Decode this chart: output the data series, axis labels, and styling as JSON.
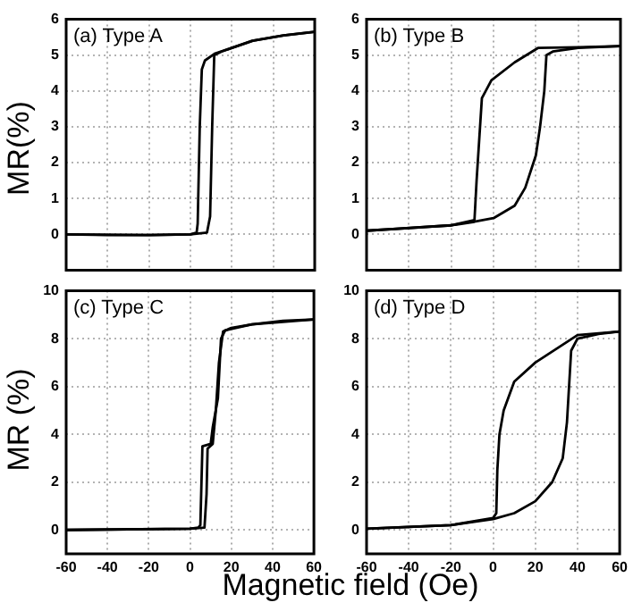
{
  "chart_data": [
    {
      "type": "line",
      "title": "(a) Type A",
      "ylabel": "MR(%)",
      "xlim": [
        -60,
        60
      ],
      "xticks": [
        -60,
        -40,
        -20,
        0,
        20,
        40,
        60
      ],
      "ylim": [
        -1,
        6
      ],
      "yticks": [
        0,
        1,
        2,
        3,
        4,
        5,
        6
      ],
      "grid": true,
      "tick_labels": "y",
      "marker": "none",
      "series": [
        {
          "color": "#000000",
          "x": [
            -60,
            -40,
            -20,
            0,
            8,
            9.5,
            10.5,
            11.5,
            15,
            20,
            30,
            45,
            60
          ],
          "values": [
            0,
            -0.02,
            -0.02,
            0,
            0.05,
            0.5,
            3,
            5,
            5.1,
            5.2,
            5.4,
            5.55,
            5.65
          ]
        },
        {
          "color": "#000000",
          "x": [
            60,
            45,
            30,
            20,
            12,
            7,
            5.5,
            4.5,
            3.5,
            3,
            0,
            -20,
            -60
          ],
          "values": [
            5.65,
            5.55,
            5.4,
            5.2,
            5.05,
            4.85,
            4.6,
            3,
            0.3,
            0.05,
            0,
            -0.02,
            0
          ]
        }
      ]
    },
    {
      "type": "line",
      "title": "(b) Type B",
      "xlim": [
        -60,
        60
      ],
      "xticks": [
        -60,
        -40,
        -20,
        0,
        20,
        40,
        60
      ],
      "ylim": [
        -1,
        6
      ],
      "yticks": [
        0,
        1,
        2,
        3,
        4,
        5,
        6
      ],
      "grid": true,
      "tick_labels": "y",
      "marker": "none",
      "series": [
        {
          "color": "#000000",
          "x": [
            -60,
            -20,
            -9,
            0,
            10,
            15,
            20,
            22,
            24,
            25,
            28,
            40,
            60
          ],
          "values": [
            0.1,
            0.25,
            0.35,
            0.45,
            0.8,
            1.3,
            2.2,
            3,
            4,
            5,
            5.1,
            5.2,
            5.25
          ]
        },
        {
          "color": "#000000",
          "x": [
            60,
            40,
            21,
            10,
            -1,
            -5.5,
            -8,
            -9,
            -20,
            -60
          ],
          "values": [
            5.25,
            5.22,
            5.2,
            4.8,
            4.3,
            3.8,
            1.5,
            0.4,
            0.25,
            0.1
          ]
        }
      ]
    },
    {
      "type": "line",
      "title": "(c) Type C",
      "ylabel": "MR (%)",
      "xlabel": "Magnetic field (Oe)",
      "xlim": [
        -60,
        60
      ],
      "xticks": [
        -60,
        -40,
        -20,
        0,
        20,
        40,
        60
      ],
      "ylim": [
        -1,
        10
      ],
      "yticks": [
        0,
        2,
        4,
        6,
        8,
        10
      ],
      "grid": true,
      "marker": "none",
      "series": [
        {
          "color": "#000000",
          "x": [
            -60,
            0,
            7,
            8,
            8.5,
            11,
            12.5,
            14,
            16,
            20,
            30,
            45,
            60
          ],
          "values": [
            0,
            0.05,
            0.1,
            1.5,
            3.4,
            3.6,
            5,
            7,
            8.3,
            8.45,
            8.6,
            8.75,
            8.8
          ]
        },
        {
          "color": "#000000",
          "x": [
            60,
            30,
            17,
            15,
            13.5,
            11,
            10,
            6,
            5,
            4,
            0,
            -60
          ],
          "values": [
            8.8,
            8.6,
            8.35,
            8,
            5.5,
            4.3,
            3.6,
            3.5,
            0.2,
            0.1,
            0.05,
            0
          ]
        }
      ]
    },
    {
      "type": "line",
      "title": "(d) Type D",
      "xlim": [
        -60,
        60
      ],
      "xticks": [
        -60,
        -40,
        -20,
        0,
        20,
        40,
        60
      ],
      "ylim": [
        -1,
        10
      ],
      "yticks": [
        0,
        2,
        4,
        6,
        8,
        10
      ],
      "grid": true,
      "marker": "none",
      "series": [
        {
          "color": "#000000",
          "x": [
            -60,
            -20,
            0,
            10,
            20,
            28,
            33,
            35,
            36,
            37,
            40,
            50,
            60
          ],
          "values": [
            0.05,
            0.2,
            0.45,
            0.7,
            1.2,
            2,
            3,
            4.5,
            6,
            7.5,
            8,
            8.2,
            8.3
          ]
        },
        {
          "color": "#000000",
          "x": [
            60,
            40,
            20,
            10,
            5,
            3,
            2,
            1.5,
            0,
            -20,
            -60
          ],
          "values": [
            8.3,
            8.15,
            7,
            6.2,
            5,
            4,
            2.5,
            0.7,
            0.5,
            0.2,
            0.05
          ]
        }
      ]
    }
  ]
}
